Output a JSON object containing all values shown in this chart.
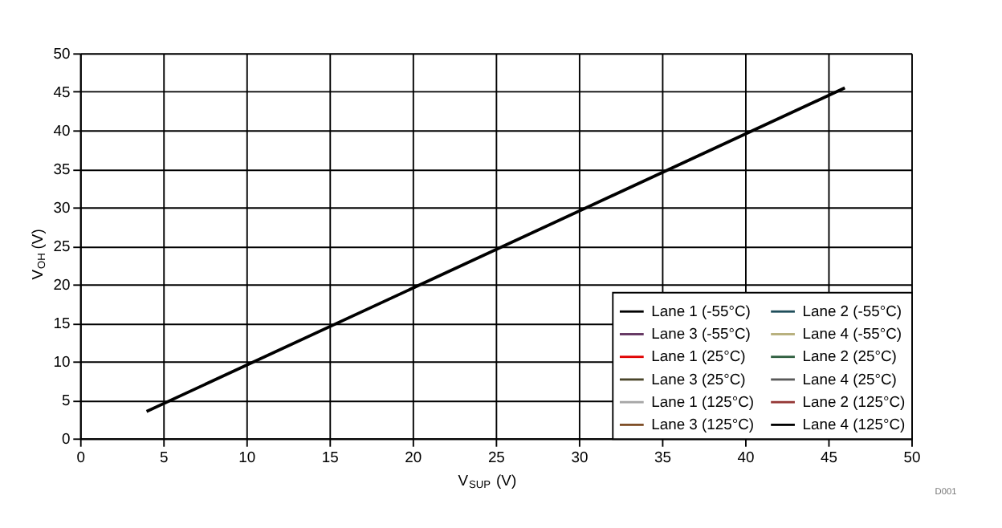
{
  "chart_data": {
    "type": "line",
    "xlabel": "V$_{SUP}$ (V)",
    "ylabel": "V$_{OH}$ (V)",
    "x": [
      4,
      46
    ],
    "series": [
      {
        "name": "Lane 1 (-55°C)",
        "color": "#000000",
        "values": [
          null,
          null
        ]
      },
      {
        "name": "Lane 1 (25°C)",
        "color": "#e00000",
        "values": [
          null,
          null
        ]
      },
      {
        "name": "Lane 1 (125°C)",
        "color": "#a6a6a6",
        "values": [
          null,
          null
        ]
      },
      {
        "name": "Lane 2 (-55°C)",
        "color": "#1f4e5a",
        "values": [
          null,
          null
        ]
      },
      {
        "name": "Lane 2 (25°C)",
        "color": "#2e5e3e",
        "values": [
          null,
          null
        ]
      },
      {
        "name": "Lane 2 (125°C)",
        "color": "#953735",
        "values": [
          null,
          null
        ]
      },
      {
        "name": "Lane 3 (-55°C)",
        "color": "#60315e",
        "values": [
          null,
          null
        ]
      },
      {
        "name": "Lane 3 (25°C)",
        "color": "#4a452a",
        "values": [
          null,
          null
        ]
      },
      {
        "name": "Lane 3 (125°C)",
        "color": "#7f4f28",
        "values": [
          null,
          null
        ]
      },
      {
        "name": "Lane 4 (-55°C)",
        "color": "#b5ad79",
        "values": [
          null,
          null
        ]
      },
      {
        "name": "Lane 4 (25°C)",
        "color": "#595959",
        "values": [
          null,
          null
        ]
      },
      {
        "name": "Lane 4 (125°C)",
        "color": "#000000",
        "values": [
          3.5,
          45.5
        ]
      }
    ],
    "xlim": [
      0,
      50
    ],
    "ylim": [
      0,
      50
    ],
    "xticks": [
      0,
      5,
      10,
      15,
      20,
      25,
      30,
      35,
      40,
      45,
      50
    ],
    "yticks": [
      0,
      5,
      10,
      15,
      20,
      25,
      30,
      35,
      40,
      45,
      50
    ],
    "grid": true,
    "legend": "bottom right",
    "line_style": "solid",
    "annotations": [
      "D001"
    ]
  }
}
